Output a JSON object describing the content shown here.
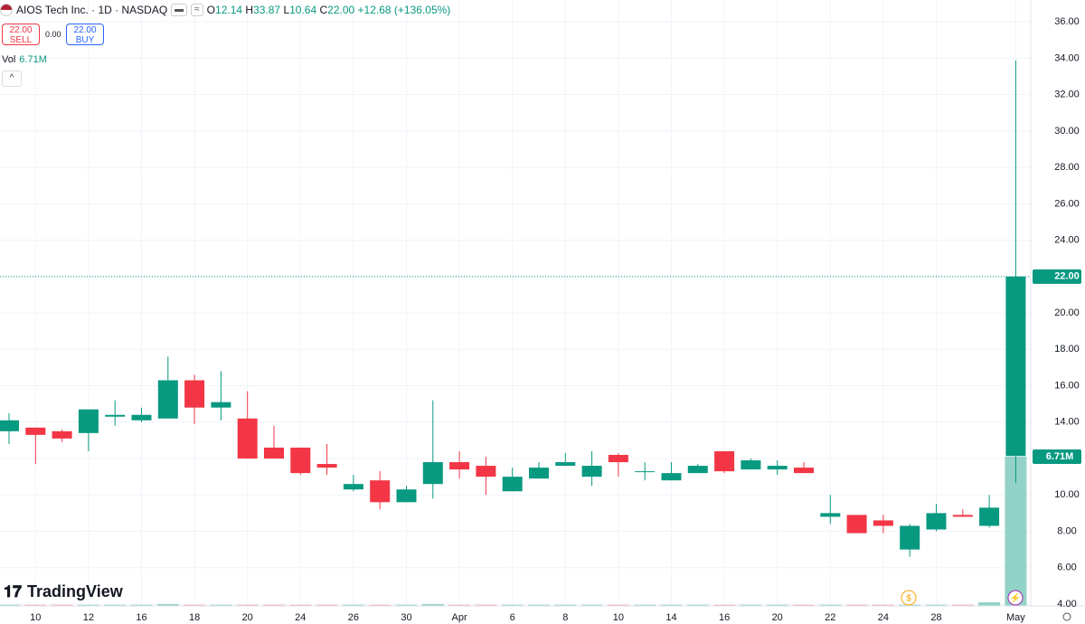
{
  "header": {
    "title": "AIOS Tech Inc. · 1D · NASDAQ",
    "ohlc": [
      {
        "key": "O",
        "value": "12.14"
      },
      {
        "key": "H",
        "value": "33.87"
      },
      {
        "key": "L",
        "value": "10.64"
      },
      {
        "key": "C",
        "value": "22.00"
      }
    ],
    "change": "+12.68 (+136.05%)",
    "sell": {
      "price": "22.00",
      "label": "SELL"
    },
    "spread": "0.00",
    "buy": {
      "price": "22.00",
      "label": "BUY"
    },
    "volume_key": "Vol"
  },
  "brand": "TradingView",
  "chart_data": {
    "type": "candlestick",
    "categories": [
      null,
      "10",
      null,
      "12",
      null,
      "16",
      null,
      "18",
      null,
      "20",
      null,
      "24",
      null,
      "26",
      null,
      "30",
      null,
      "Apr",
      null,
      "6",
      null,
      "8",
      null,
      "10",
      null,
      "14",
      null,
      "16",
      null,
      "20",
      null,
      "22",
      null,
      "24",
      null,
      "28",
      null,
      null,
      "May"
    ],
    "open": [
      13.5,
      13.7,
      13.5,
      13.4,
      14.3,
      14.1,
      14.2,
      16.3,
      14.8,
      14.2,
      12.6,
      12.6,
      11.7,
      10.3,
      10.8,
      9.6,
      10.6,
      11.8,
      11.6,
      10.2,
      10.9,
      11.6,
      11.0,
      12.2,
      11.3,
      10.8,
      11.2,
      12.4,
      11.4,
      11.4,
      11.5,
      8.8,
      8.9,
      8.6,
      7.0,
      8.1,
      8.9,
      8.3,
      12.14
    ],
    "high": [
      14.5,
      13.7,
      13.6,
      14.7,
      15.2,
      14.8,
      17.6,
      16.6,
      16.8,
      15.7,
      13.8,
      12.6,
      12.8,
      11.1,
      11.3,
      10.5,
      15.2,
      12.4,
      12.1,
      11.5,
      11.8,
      12.3,
      12.4,
      12.3,
      11.8,
      11.8,
      11.7,
      12.4,
      12.0,
      11.9,
      11.8,
      10.0,
      8.9,
      8.9,
      8.4,
      9.5,
      9.2,
      10.0,
      33.87
    ],
    "low": [
      12.8,
      11.7,
      12.9,
      12.4,
      13.8,
      14.0,
      14.2,
      13.9,
      14.1,
      12.0,
      12.0,
      11.1,
      11.1,
      10.2,
      9.2,
      9.6,
      9.8,
      10.9,
      10.0,
      10.2,
      10.9,
      11.6,
      10.5,
      11.0,
      10.8,
      10.8,
      11.2,
      11.2,
      11.4,
      11.1,
      11.2,
      8.4,
      7.9,
      7.9,
      6.6,
      8.0,
      8.8,
      8.2,
      10.64
    ],
    "close": [
      14.1,
      13.3,
      13.1,
      14.7,
      14.4,
      14.4,
      16.3,
      14.8,
      15.1,
      12.0,
      12.0,
      11.2,
      11.5,
      10.6,
      9.6,
      10.3,
      11.8,
      11.4,
      11.0,
      11.0,
      11.5,
      11.8,
      11.6,
      11.8,
      11.3,
      11.2,
      11.6,
      11.3,
      11.9,
      11.6,
      11.2,
      9.0,
      7.9,
      8.3,
      8.3,
      9.0,
      8.8,
      9.3,
      22
    ],
    "volume": [
      0.05,
      0.05,
      0.05,
      0.05,
      0.05,
      0.05,
      0.08,
      0.05,
      0.05,
      0.05,
      0.05,
      0.05,
      0.05,
      0.05,
      0.05,
      0.05,
      0.08,
      0.05,
      0.05,
      0.05,
      0.05,
      0.05,
      0.05,
      0.05,
      0.05,
      0.05,
      0.05,
      0.05,
      0.05,
      0.05,
      0.05,
      0.05,
      0.05,
      0.05,
      0.05,
      0.05,
      0.05,
      0.16,
      6.71
    ],
    "volume_labels": [
      null,
      null,
      null,
      null,
      null,
      null,
      null,
      null,
      null,
      null,
      null,
      null,
      null,
      null,
      null,
      null,
      null,
      null,
      null,
      null,
      null,
      null,
      null,
      null,
      null,
      null,
      null,
      null,
      null,
      null,
      null,
      null,
      null,
      null,
      null,
      null,
      null,
      null,
      "6.71M"
    ],
    "close_labels": [
      null,
      null,
      null,
      null,
      null,
      null,
      null,
      null,
      null,
      null,
      null,
      null,
      null,
      null,
      null,
      null,
      null,
      null,
      null,
      null,
      null,
      null,
      null,
      null,
      null,
      null,
      null,
      null,
      null,
      null,
      null,
      null,
      null,
      null,
      null,
      null,
      null,
      null,
      "22.00"
    ],
    "ylim": [
      3.9,
      37.2
    ],
    "yticks": [
      {
        "value": 4,
        "label": "4.00"
      },
      {
        "value": 6,
        "label": "6.00"
      },
      {
        "value": 8,
        "label": "8.00"
      },
      {
        "value": 10,
        "label": "10.00"
      },
      {
        "value": 12,
        "label": "12.00"
      },
      {
        "value": 14,
        "label": "14.00"
      },
      {
        "value": 16,
        "label": "16.00"
      },
      {
        "value": 18,
        "label": "18.00"
      },
      {
        "value": 20,
        "label": "20.00"
      },
      {
        "value": 22,
        "label": "22.00"
      },
      {
        "value": 24,
        "label": "24.00"
      },
      {
        "value": 26,
        "label": "26.00"
      },
      {
        "value": 28,
        "label": "28.00"
      },
      {
        "value": 30,
        "label": "30.00"
      },
      {
        "value": 32,
        "label": "32.00"
      },
      {
        "value": 34,
        "label": "34.00"
      },
      {
        "value": 36,
        "label": "36.00"
      }
    ],
    "volume_ylim": [
      0,
      27.25
    ],
    "grid": true,
    "up_color": "#089981",
    "down_color": "#f23645",
    "volume_up_color": "#93d2c6",
    "volume_down_color": "#f7a9b0"
  }
}
